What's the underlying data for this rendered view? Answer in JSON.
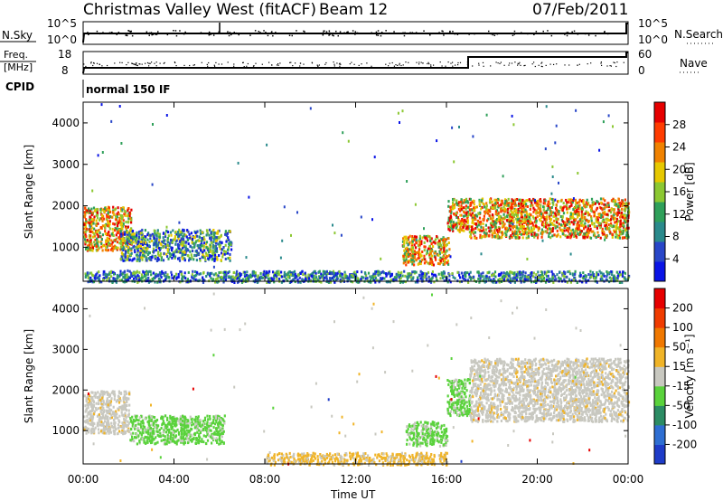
{
  "header": {
    "title": "Christmas Valley West (fitACF)",
    "beam": "Beam 12",
    "date": "07/Feb/2011"
  },
  "panels": {
    "nsky": {
      "label": "N.Sky",
      "ticks": [
        "10^5",
        "10^0"
      ],
      "right_ticks": [
        "10^5",
        "10^0"
      ],
      "right_label": "N.Search"
    },
    "freq": {
      "label_line1": "Freq.",
      "label_line2": "[MHz]",
      "ticks": [
        "18",
        "8"
      ],
      "right_ticks": [
        "60",
        "0"
      ],
      "right_label": "Nave"
    },
    "cpid": {
      "label": "CPID",
      "value": "normal 150 IF"
    }
  },
  "chart_data": [
    {
      "type": "heatmap",
      "name": "power",
      "ylabel": "Slant Range [km]",
      "xlabel": "",
      "ylim": [
        180,
        4500
      ],
      "yticks": [
        "1000",
        "2000",
        "3000",
        "4000"
      ],
      "xlim": [
        "00:00",
        "24:00"
      ],
      "colorbar": {
        "label": "Power [dB]",
        "range": [
          0,
          32
        ],
        "ticks": [
          "4",
          "8",
          "12",
          "16",
          "20",
          "24",
          "28"
        ],
        "colors": [
          "#0a14e6",
          "#2846c8",
          "#2a8a8c",
          "#2fa05a",
          "#8cc832",
          "#e6c800",
          "#f08200",
          "#ff3c00",
          "#e60000"
        ]
      },
      "regions": [
        {
          "t0": 0.0,
          "t1": 2.1,
          "r0": 950,
          "r1": 2000,
          "level": "strong"
        },
        {
          "t0": 1.6,
          "t1": 6.5,
          "r0": 700,
          "r1": 1450,
          "level": "medium"
        },
        {
          "t0": 14.0,
          "t1": 16.1,
          "r0": 600,
          "r1": 1300,
          "level": "strong"
        },
        {
          "t0": 16.0,
          "t1": 17.0,
          "r0": 1400,
          "r1": 2200,
          "level": "strong"
        },
        {
          "t0": 17.0,
          "t1": 24.0,
          "r0": 1250,
          "r1": 2200,
          "level": "strong"
        },
        {
          "t0": 0.0,
          "t1": 24.0,
          "r0": 180,
          "r1": 450,
          "level": "weak"
        }
      ]
    },
    {
      "type": "heatmap",
      "name": "velocity",
      "ylabel": "Slant Range [km]",
      "xlabel": "Time UT",
      "ylim": [
        180,
        4500
      ],
      "yticks": [
        "1000",
        "2000",
        "3000",
        "4000"
      ],
      "xlim": [
        "00:00",
        "24:00"
      ],
      "xticks": [
        "00:00",
        "04:00",
        "08:00",
        "12:00",
        "16:00",
        "20:00",
        "00:00"
      ],
      "colorbar": {
        "label": "Velocity [m s⁻¹]",
        "range": [
          -250,
          250
        ],
        "ticks": [
          "200",
          "100",
          "50",
          "15",
          "-15",
          "-50",
          "-100",
          "-200"
        ],
        "colors": [
          "#1e3cc8",
          "#2e6ed2",
          "#2c8c64",
          "#5ad23c",
          "#c8c8c0",
          "#f0b428",
          "#f07800",
          "#f03c00",
          "#e60000"
        ]
      },
      "regions": [
        {
          "t0": 0.0,
          "t1": 2.0,
          "r0": 950,
          "r1": 2000,
          "level": "gray"
        },
        {
          "t0": 2.0,
          "t1": 6.2,
          "r0": 700,
          "r1": 1400,
          "level": "green"
        },
        {
          "t0": 14.2,
          "t1": 16.0,
          "r0": 650,
          "r1": 1250,
          "level": "green"
        },
        {
          "t0": 16.0,
          "t1": 17.0,
          "r0": 1400,
          "r1": 2300,
          "level": "green"
        },
        {
          "t0": 17.0,
          "t1": 24.0,
          "r0": 1250,
          "r1": 2800,
          "level": "gray"
        },
        {
          "t0": 8.0,
          "t1": 16.0,
          "r0": 180,
          "r1": 480,
          "level": "orange"
        }
      ]
    }
  ]
}
